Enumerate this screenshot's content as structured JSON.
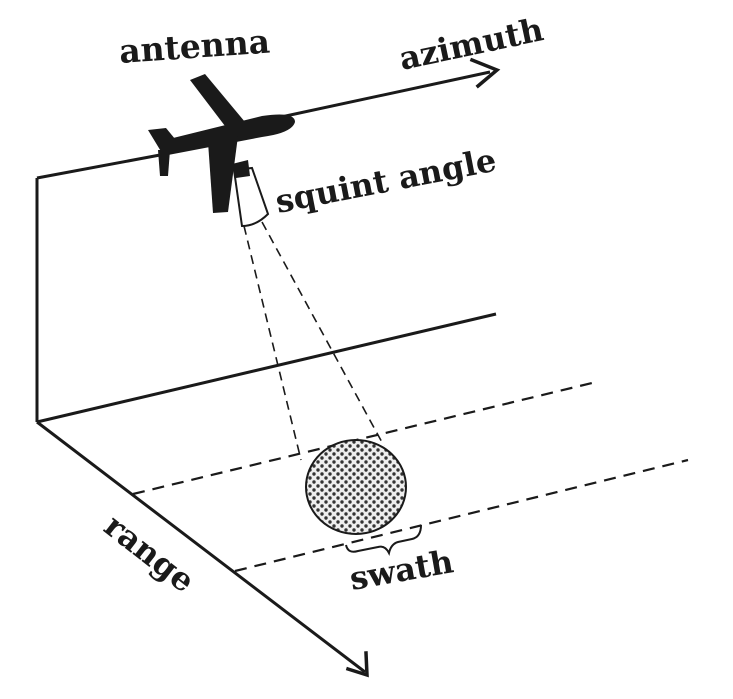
{
  "labels": {
    "antenna": "antenna",
    "azimuth": "azimuth",
    "squint_angle": "squint angle",
    "range": "range",
    "swath": "swath"
  },
  "colors": {
    "ink": "#1a1a1a",
    "background": "#ffffff",
    "footprint_fill": "#555555",
    "footprint_bg": "#eeeeee"
  }
}
